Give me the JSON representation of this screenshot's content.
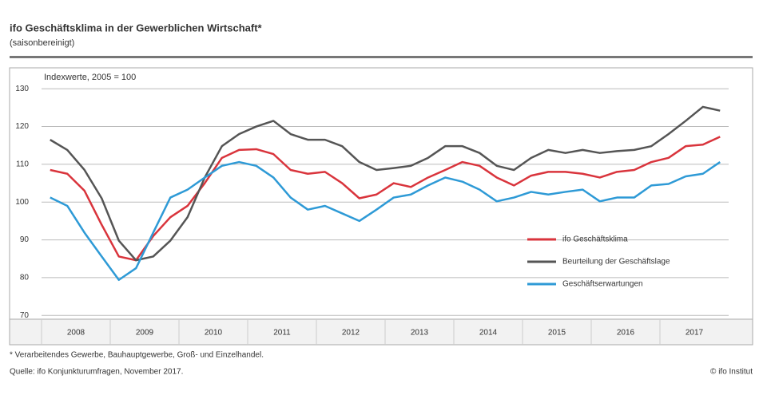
{
  "chart_data": {
    "type": "line",
    "title": "ifo Geschäftsklima in der Gewerblichen Wirtschaft*",
    "subtitle": "(saisonbereinigt)",
    "annotation": "Indexwerte, 2005 = 100",
    "footnote": "* Verarbeitendes Gewerbe, Bauhauptgewerbe, Groß- und Einzelhandel.",
    "source": "Quelle: ifo Konjunkturumfragen, November 2017.",
    "credit": "© ifo Institut",
    "categories": [
      "2008",
      null,
      null,
      null,
      "2009",
      null,
      null,
      null,
      "2010",
      null,
      null,
      null,
      "2011",
      null,
      null,
      null,
      "2012",
      null,
      null,
      null,
      "2013",
      null,
      null,
      null,
      "2014",
      null,
      null,
      null,
      "2015",
      null,
      null,
      null,
      "2016",
      null,
      null,
      null,
      "2017",
      null,
      null,
      null
    ],
    "ylim": [
      69,
      133
    ],
    "yticks": [
      70,
      80,
      90,
      100,
      110,
      120,
      130
    ],
    "grid": true,
    "legend": "lower right",
    "series": [
      {
        "name": "ifo Geschäftsklima",
        "color": "#d9343c",
        "values": [
          108.5,
          107.5,
          103,
          94,
          85.6,
          84.6,
          91,
          96,
          99,
          105,
          111.7,
          113.8,
          114,
          112.7,
          108.5,
          107.5,
          108,
          105,
          101,
          102,
          105,
          104,
          106.5,
          108.5,
          110.6,
          109.6,
          106.5,
          104.4,
          107,
          108,
          108,
          107.5,
          106.5,
          108,
          108.5,
          110.6,
          111.7,
          114.8,
          115.2,
          117.3
        ]
      },
      {
        "name": "Beurteilung der Geschäftslage",
        "color": "#555555",
        "values": [
          116.5,
          113.8,
          108.5,
          101,
          89.8,
          84.6,
          85.6,
          89.8,
          96,
          106.5,
          114.8,
          118,
          120,
          121.5,
          118,
          116.5,
          116.5,
          114.8,
          110.6,
          108.5,
          109,
          109.6,
          111.7,
          114.8,
          114.8,
          113,
          109.6,
          108.5,
          111.7,
          113.8,
          113,
          113.8,
          113,
          113.5,
          113.8,
          114.8,
          118,
          121.5,
          125.2,
          124.2
        ]
      },
      {
        "name": "Geschäftserwartungen",
        "color": "#2e9ad6",
        "values": [
          101.2,
          99,
          91.9,
          85.6,
          79.4,
          82.5,
          91.9,
          101.2,
          103.3,
          106.5,
          109.6,
          110.6,
          109.6,
          106.5,
          101.2,
          98,
          99,
          97,
          95,
          98,
          101.2,
          102,
          104.4,
          106.5,
          105.4,
          103.3,
          100.2,
          101.2,
          102.7,
          102,
          102.7,
          103.3,
          100.2,
          101.2,
          101.2,
          104.4,
          104.8,
          106.8,
          107.5,
          110.6
        ]
      }
    ]
  }
}
